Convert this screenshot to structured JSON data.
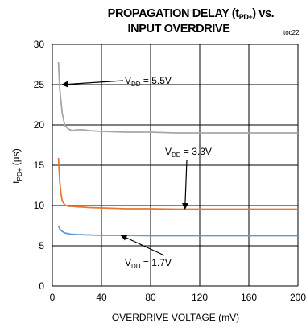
{
  "chart_data": {
    "type": "line",
    "title": {
      "line1": "PROPAGATION DELAY (t",
      "line1_sub": "PD+",
      "line1_end": ") vs.",
      "line2": "INPUT OVERDRIVE"
    },
    "note": "toc22",
    "xlabel": "OVERDRIVE VOLTAGE (mV)",
    "ylabel": {
      "main": "t",
      "sub": "PD+",
      "end": " (µs)"
    },
    "xlim": [
      0,
      200
    ],
    "ylim": [
      0,
      30
    ],
    "xticks": [
      "0",
      "40",
      "80",
      "120",
      "160",
      "200"
    ],
    "yticks": [
      "0",
      "5",
      "10",
      "15",
      "20",
      "25",
      "30"
    ],
    "grid": true,
    "series": [
      {
        "name": "VDD = 5.5V",
        "label": {
          "prefix": "V",
          "sub": "DD",
          "suffix": " = 5.5V"
        },
        "color": "#a6a6a6",
        "x": [
          5,
          6,
          8,
          10,
          13,
          16,
          20,
          25,
          30,
          40,
          60,
          80,
          100,
          120,
          140,
          160,
          180,
          200
        ],
        "y": [
          27.8,
          24.5,
          21.5,
          20.0,
          19.5,
          19.3,
          19.4,
          19.4,
          19.3,
          19.2,
          19.1,
          19.1,
          19.0,
          19.0,
          19.0,
          19.0,
          19.0,
          19.0
        ]
      },
      {
        "name": "VDD = 3.3V",
        "label": {
          "prefix": "V",
          "sub": "DD",
          "suffix": " = 3.3V"
        },
        "color": "#e8772e",
        "x": [
          5,
          6,
          7,
          8,
          10,
          13,
          16,
          20,
          30,
          40,
          60,
          80,
          100,
          120,
          140,
          160,
          180,
          200
        ],
        "y": [
          15.9,
          13.0,
          11.5,
          10.6,
          10.1,
          9.9,
          9.9,
          9.85,
          9.75,
          9.7,
          9.6,
          9.6,
          9.55,
          9.55,
          9.55,
          9.55,
          9.55,
          9.55
        ]
      },
      {
        "name": "VDD = 1.7V",
        "label": {
          "prefix": "V",
          "sub": "DD",
          "suffix": " = 1.7V"
        },
        "color": "#5b9bd5",
        "x": [
          5,
          6,
          8,
          10,
          15,
          20,
          30,
          40,
          60,
          80,
          100,
          120,
          140,
          160,
          180,
          200
        ],
        "y": [
          7.5,
          7.1,
          6.8,
          6.6,
          6.45,
          6.4,
          6.35,
          6.3,
          6.3,
          6.25,
          6.25,
          6.25,
          6.25,
          6.25,
          6.25,
          6.25
        ]
      }
    ]
  }
}
